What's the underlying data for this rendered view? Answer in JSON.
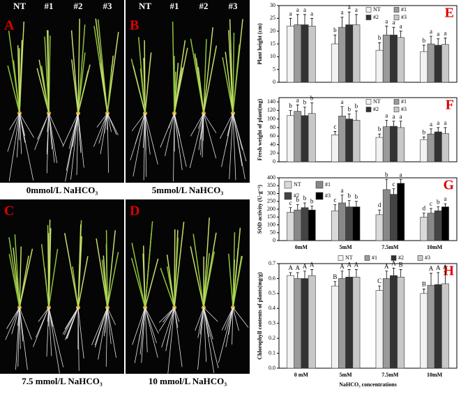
{
  "photos": [
    {
      "letter": "A",
      "header": [
        "NT",
        "#1",
        "#2",
        "#3"
      ],
      "caption": "0mmol/L NaHCO₃"
    },
    {
      "letter": "B",
      "header": [
        "NT",
        "#1",
        "#2",
        "#3"
      ],
      "caption": "5mmol/L NaHCO₃"
    },
    {
      "letter": "C",
      "caption": "7.5 mmol/L NaHCO₃"
    },
    {
      "letter": "D",
      "caption": "10 mmol/L NaHCO₃"
    }
  ],
  "chart_data": [
    {
      "type": "bar",
      "panel": "E",
      "y_label": "Plant height (cm)",
      "categories": [
        null,
        null,
        null,
        null
      ],
      "ylim": [
        0,
        30
      ],
      "yticks": [
        0,
        5,
        10,
        15,
        20,
        25,
        30
      ],
      "legend": "top-right",
      "series": [
        {
          "name": "NT",
          "color": "#f2f2f2",
          "values": [
            22,
            15,
            12.5,
            12
          ],
          "errors": [
            3,
            3.5,
            3,
            2.5
          ],
          "letters": [
            "a",
            "b",
            "b",
            "b"
          ]
        },
        {
          "name": "#1",
          "color": "#9a9a9a",
          "values": [
            22.5,
            21.5,
            18.5,
            15
          ],
          "errors": [
            4,
            4,
            3.5,
            3
          ],
          "letters": [
            "a",
            "a",
            "a",
            "a"
          ]
        },
        {
          "name": "#2",
          "color": "#333333",
          "values": [
            22.5,
            22.5,
            18.5,
            14.5
          ],
          "errors": [
            4,
            5,
            3,
            2.5
          ],
          "letters": [
            "a",
            "a",
            "a",
            "a"
          ]
        },
        {
          "name": "#3",
          "color": "#c8c8c8",
          "values": [
            22,
            22.5,
            17.5,
            14.8
          ],
          "errors": [
            3,
            4,
            2.5,
            2.5
          ],
          "letters": [
            "a",
            "a",
            "a",
            "a"
          ]
        }
      ]
    },
    {
      "type": "bar",
      "panel": "F",
      "y_label": "Fresh weight of plant(mg)",
      "categories": [
        null,
        null,
        null,
        null
      ],
      "ylim": [
        0,
        150
      ],
      "yticks": [
        0,
        20,
        40,
        60,
        80,
        100,
        120,
        140
      ],
      "legend": "top-right",
      "series": [
        {
          "name": "NT",
          "color": "#f2f2f2",
          "values": [
            108,
            63,
            57,
            52
          ],
          "errors": [
            12,
            8,
            8,
            6
          ],
          "letters": [
            "b",
            "c",
            "b",
            "b"
          ]
        },
        {
          "name": "#1",
          "color": "#9a9a9a",
          "values": [
            118,
            107,
            82,
            65
          ],
          "errors": [
            15,
            22,
            15,
            12
          ],
          "letters": [
            "a",
            "a",
            "a",
            "a"
          ]
        },
        {
          "name": "#2",
          "color": "#333333",
          "values": [
            108,
            100,
            83,
            70
          ],
          "errors": [
            20,
            12,
            12,
            10
          ],
          "letters": [
            "b",
            "b",
            "a",
            "a"
          ]
        },
        {
          "name": "#3",
          "color": "#c8c8c8",
          "values": [
            113,
            97,
            80,
            66
          ],
          "errors": [
            25,
            22,
            15,
            14
          ],
          "letters": [
            "b",
            "b",
            "a",
            "a"
          ]
        }
      ]
    },
    {
      "type": "bar",
      "panel": "G",
      "y_label": "SOD activity (U·g⁻¹)",
      "categories": [
        "0mM",
        "5mM",
        "7.5mM",
        "10mM"
      ],
      "ylim": [
        0,
        400
      ],
      "yticks": [
        0,
        50,
        100,
        150,
        200,
        250,
        300,
        350,
        400
      ],
      "legend": "top-left",
      "series": [
        {
          "name": "NT",
          "color": "#d9d9d9",
          "values": [
            180,
            190,
            165,
            150
          ],
          "errors": [
            30,
            40,
            30,
            25
          ],
          "letters": [
            "c",
            "c",
            "d",
            "d"
          ]
        },
        {
          "name": "#1",
          "color": "#888888",
          "values": [
            195,
            240,
            325,
            175
          ],
          "errors": [
            35,
            50,
            65,
            30
          ],
          "letters": [
            "b",
            "a",
            "b",
            "c"
          ]
        },
        {
          "name": "#2",
          "color": "#444444",
          "values": [
            210,
            215,
            295,
            190
          ],
          "errors": [
            30,
            40,
            35,
            25
          ],
          "letters": [
            "b",
            "b",
            "c",
            "b"
          ]
        },
        {
          "name": "#3",
          "color": "#000000",
          "values": [
            195,
            215,
            365,
            215
          ],
          "errors": [
            25,
            35,
            25,
            20
          ],
          "letters": [
            "b",
            "b",
            "a",
            "a"
          ]
        }
      ]
    },
    {
      "type": "bar",
      "panel": "H",
      "y_label": "Chlorophyll contents of plants(mg/g)",
      "x_label": "NaHCO₃ concentrations",
      "categories": [
        "0 mM",
        "5mM",
        "7.5mM",
        "10mM"
      ],
      "ylim": [
        0,
        0.7
      ],
      "yticks": [
        {
          "value": 0,
          "label": "0.0"
        },
        0.1,
        0.2,
        0.3,
        0.4,
        0.5,
        0.6,
        0.7
      ],
      "legend": "top-right",
      "series": [
        {
          "name": "NT",
          "color": "#f2f2f2",
          "values": [
            0.62,
            0.55,
            0.52,
            0.5
          ],
          "errors": [
            0.02,
            0.03,
            0.03,
            0.03
          ],
          "letters": [
            "A",
            "B",
            "C",
            "B"
          ]
        },
        {
          "name": "#1",
          "color": "#9a9a9a",
          "values": [
            0.6,
            0.6,
            0.6,
            0.555
          ],
          "errors": [
            0.04,
            0.05,
            0.05,
            0.08
          ],
          "letters": [
            "A",
            "A",
            "A",
            "A"
          ]
        },
        {
          "name": "#2",
          "color": "#333333",
          "values": [
            0.6,
            0.61,
            0.62,
            0.56
          ],
          "errors": [
            0.05,
            0.05,
            0.05,
            0.08
          ],
          "letters": [
            "A",
            "A",
            "A",
            "A"
          ]
        },
        {
          "name": "#3",
          "color": "#c8c8c8",
          "values": [
            0.62,
            0.61,
            0.61,
            0.565
          ],
          "errors": [
            0.04,
            0.05,
            0.05,
            0.08
          ],
          "letters": [
            "A",
            "A",
            "B",
            "A"
          ]
        }
      ]
    }
  ]
}
